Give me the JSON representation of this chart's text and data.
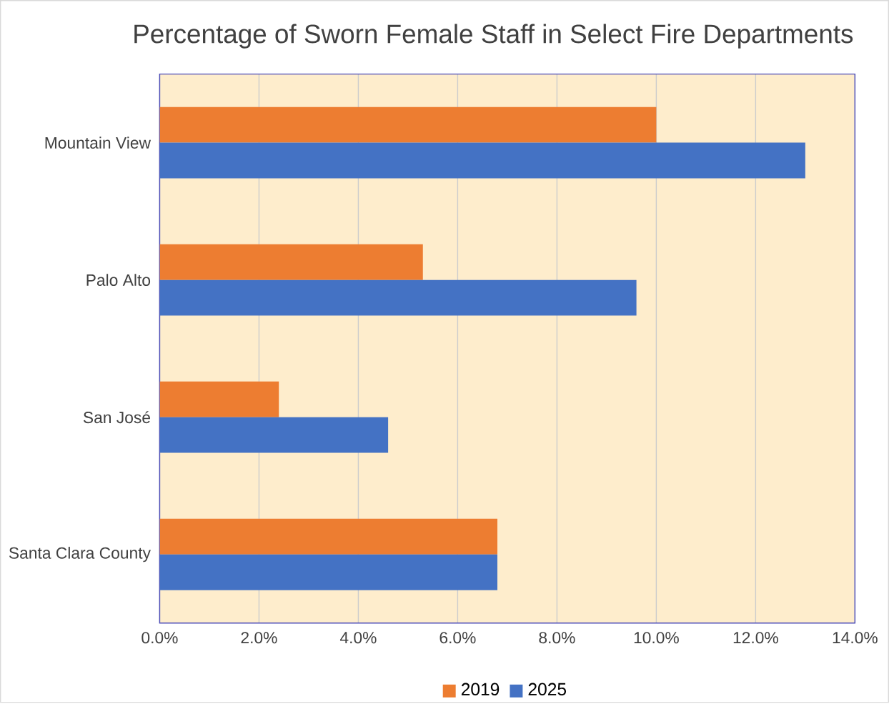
{
  "chart_data": {
    "type": "bar",
    "orientation": "horizontal",
    "title": "Percentage of Sworn Female Staff in Select Fire Departments",
    "categories": [
      "Mountain View",
      "Palo Alto",
      "San José",
      "Santa Clara County"
    ],
    "series": [
      {
        "name": "2019",
        "color": "#ed7d31",
        "values": [
          10.0,
          5.3,
          2.4,
          6.8
        ]
      },
      {
        "name": "2025",
        "color": "#4472c4",
        "values": [
          13.0,
          9.6,
          4.6,
          6.8
        ]
      }
    ],
    "xlim": [
      0,
      14
    ],
    "xticks": [
      {
        "value": 0,
        "label": "0.0%"
      },
      {
        "value": 2,
        "label": "2.0%"
      },
      {
        "value": 4,
        "label": "4.0%"
      },
      {
        "value": 6,
        "label": "6.0%"
      },
      {
        "value": 8,
        "label": "8.0%"
      },
      {
        "value": 10,
        "label": "10.0%"
      },
      {
        "value": 12,
        "label": "12.0%"
      },
      {
        "value": 14,
        "label": "14.0%"
      }
    ],
    "grid": "x",
    "legend": "bottom"
  }
}
